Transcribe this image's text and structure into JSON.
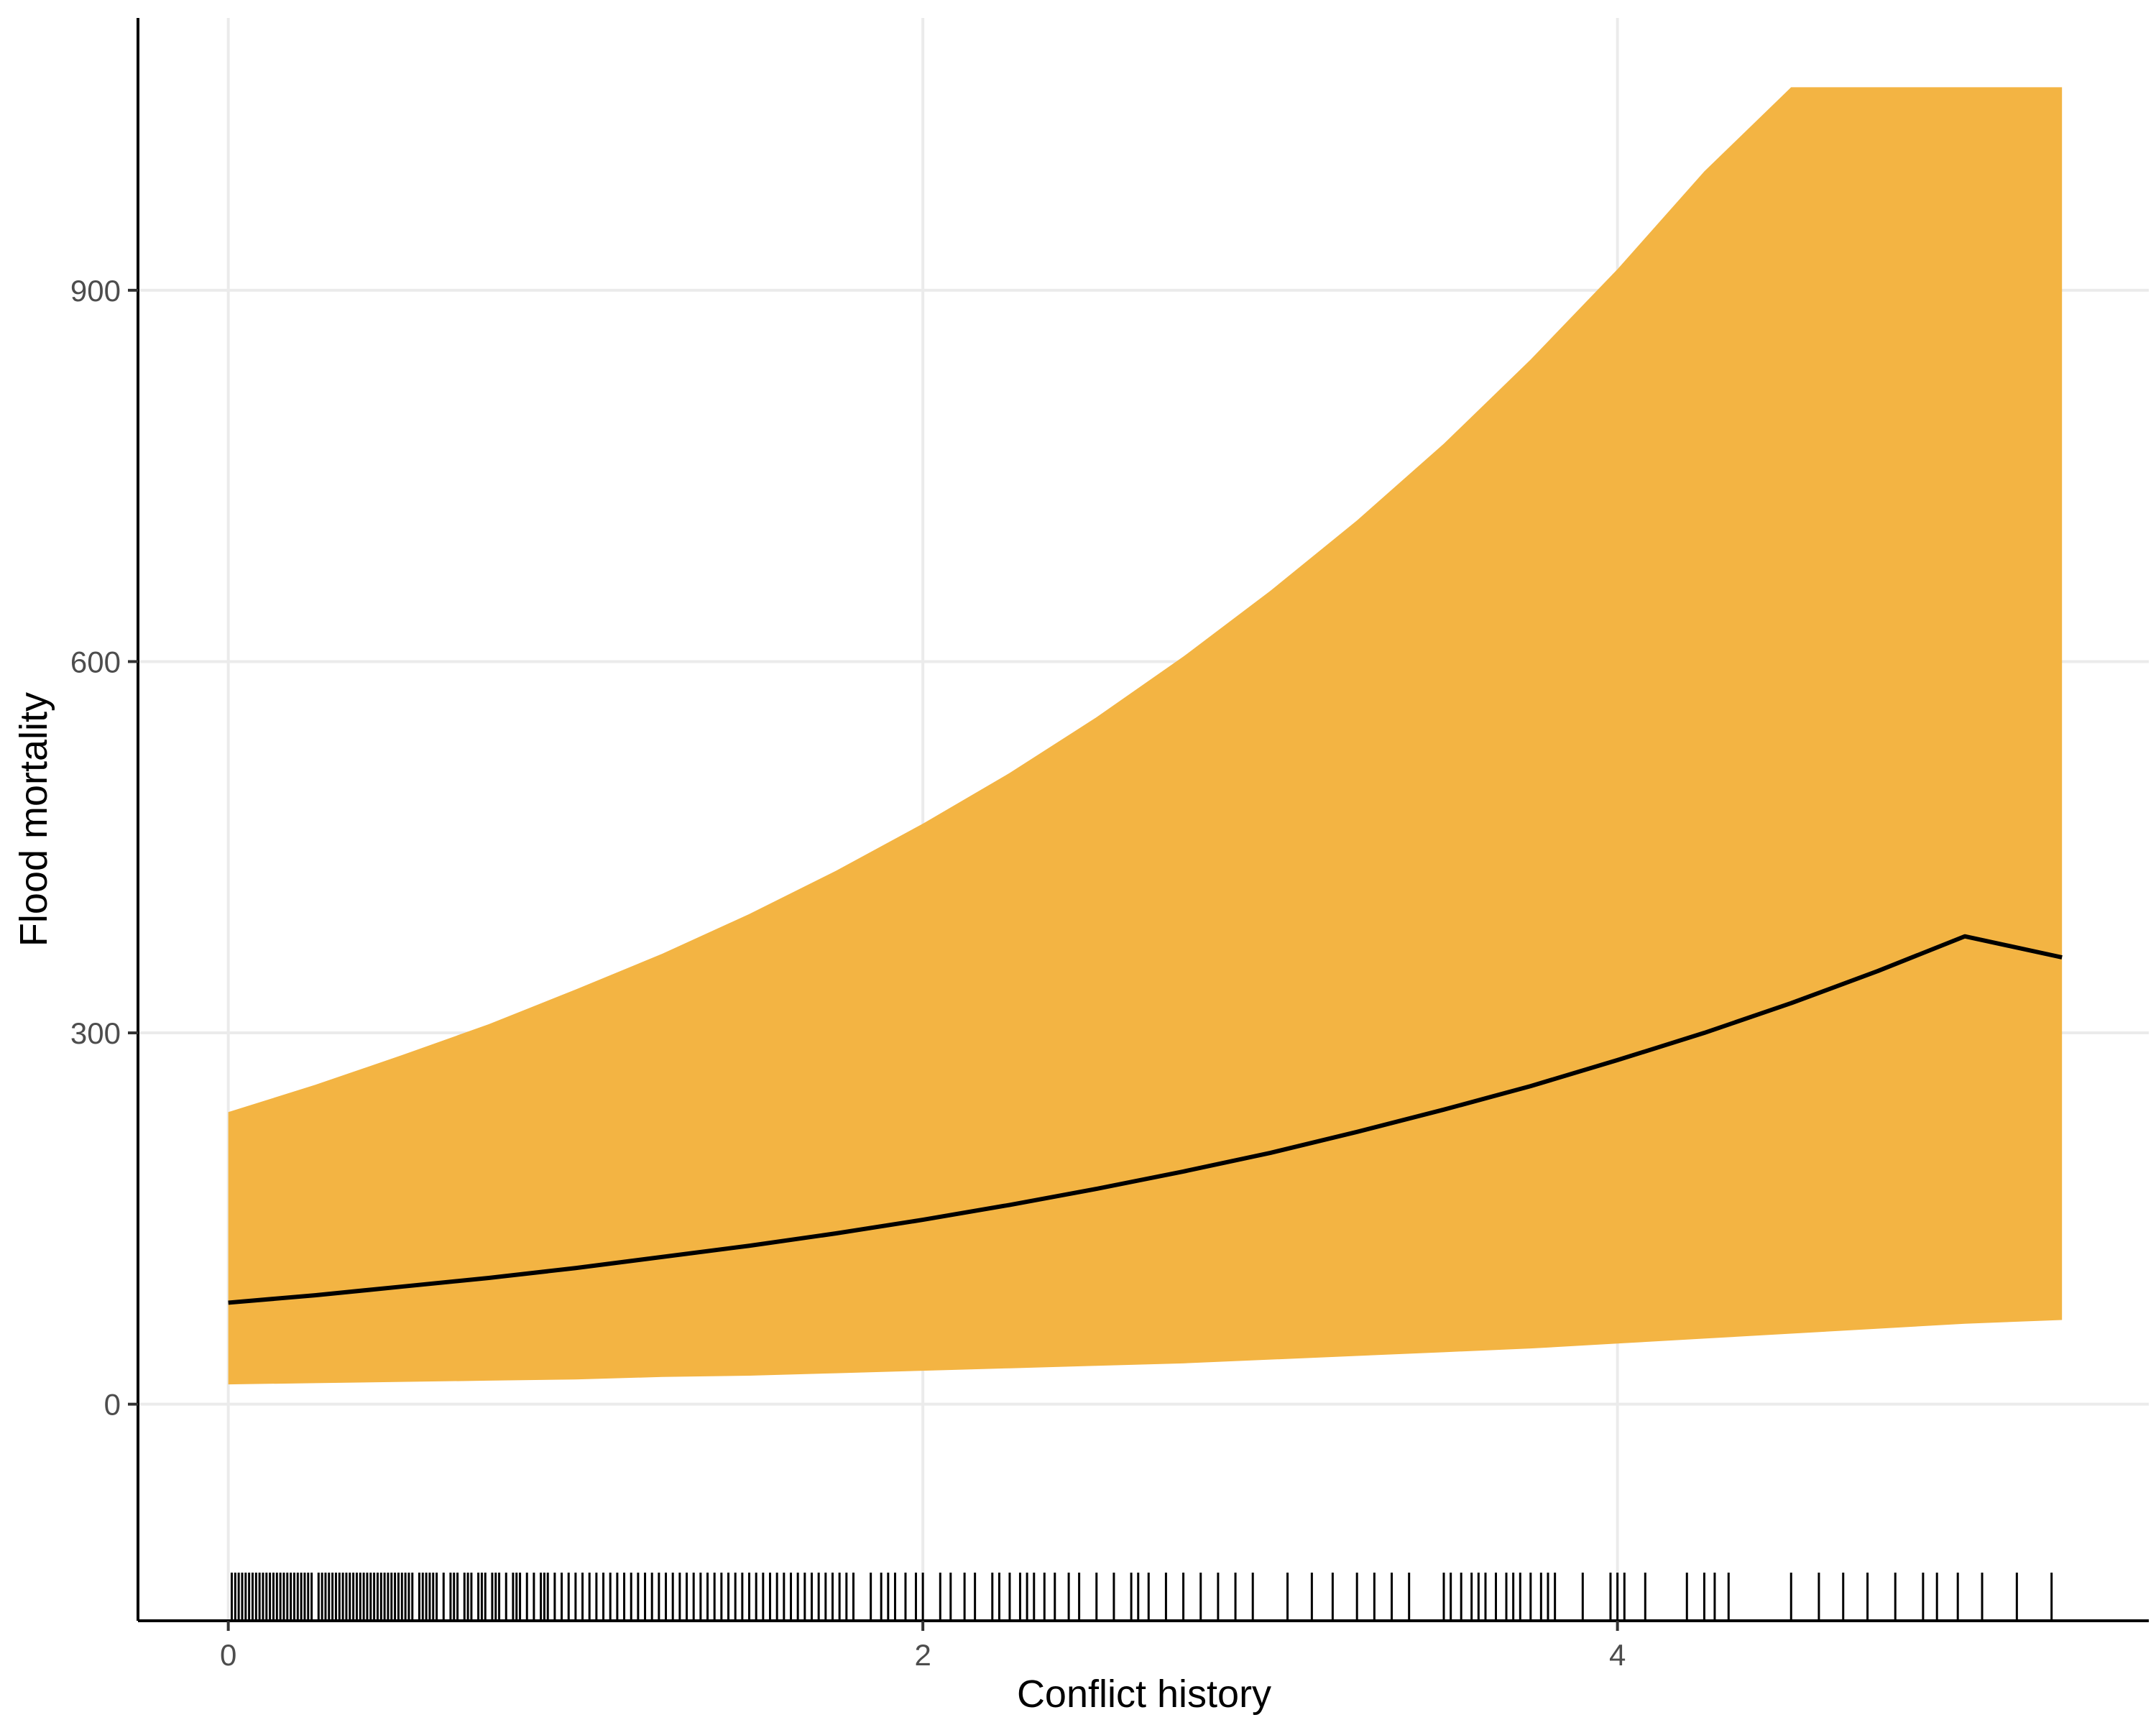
{
  "chart_data": {
    "type": "line",
    "title": "",
    "xlabel": "Conflict history",
    "ylabel": "Flood mortality",
    "xlim": [
      -0.26,
      5.53
    ],
    "ylim": [
      -175,
      1120
    ],
    "x_ticks": [
      0,
      2,
      4
    ],
    "x_tick_labels": [
      "0",
      "2",
      "4"
    ],
    "y_ticks": [
      0,
      300,
      600,
      900
    ],
    "y_tick_labels": [
      "0",
      "300",
      "600",
      "900"
    ],
    "grid": true,
    "legend": "none",
    "series": [
      {
        "x": [
          0,
          0.25,
          0.5,
          0.75,
          1.0,
          1.25,
          1.5,
          1.75,
          2.0,
          2.25,
          2.5,
          2.75,
          3.0,
          3.25,
          3.5,
          3.75,
          4.0,
          4.25,
          4.5,
          4.75,
          5.0,
          5.28
        ],
        "y": [
          82,
          88,
          95,
          102,
          110,
          119,
          128,
          138,
          149,
          161,
          174,
          188,
          203,
          220,
          238,
          257,
          278,
          300,
          324,
          350,
          378,
          361
        ]
      }
    ],
    "band": {
      "x": [
        0,
        0.25,
        0.5,
        0.75,
        1.0,
        1.25,
        1.5,
        1.75,
        2.0,
        2.25,
        2.5,
        2.75,
        3.0,
        3.25,
        3.5,
        3.75,
        4.0,
        4.25,
        4.5,
        4.75,
        5.0,
        5.28
      ],
      "lower": [
        16,
        17,
        18,
        19,
        20,
        22,
        23,
        25,
        27,
        29,
        31,
        33,
        36,
        39,
        42,
        45,
        49,
        53,
        57,
        61,
        65,
        68
      ],
      "upper": [
        236,
        258,
        282,
        307,
        335,
        364,
        396,
        431,
        469,
        510,
        555,
        604,
        657,
        714,
        776,
        844,
        917,
        996,
        1080,
        1170,
        1266,
        1064
      ]
    },
    "rug_x": [
      0.01,
      0.02,
      0.03,
      0.04,
      0.05,
      0.06,
      0.07,
      0.08,
      0.09,
      0.1,
      0.11,
      0.12,
      0.13,
      0.14,
      0.15,
      0.16,
      0.17,
      0.18,
      0.19,
      0.2,
      0.21,
      0.22,
      0.23,
      0.24,
      0.26,
      0.27,
      0.28,
      0.29,
      0.3,
      0.31,
      0.32,
      0.33,
      0.34,
      0.35,
      0.36,
      0.37,
      0.38,
      0.39,
      0.4,
      0.41,
      0.42,
      0.43,
      0.44,
      0.45,
      0.46,
      0.47,
      0.48,
      0.49,
      0.5,
      0.51,
      0.52,
      0.53,
      0.55,
      0.56,
      0.57,
      0.58,
      0.59,
      0.6,
      0.62,
      0.64,
      0.65,
      0.66,
      0.68,
      0.69,
      0.7,
      0.72,
      0.73,
      0.74,
      0.76,
      0.77,
      0.78,
      0.8,
      0.82,
      0.83,
      0.84,
      0.86,
      0.88,
      0.9,
      0.91,
      0.92,
      0.94,
      0.96,
      0.98,
      1.0,
      1.02,
      1.04,
      1.06,
      1.08,
      1.1,
      1.12,
      1.14,
      1.16,
      1.18,
      1.2,
      1.22,
      1.24,
      1.26,
      1.28,
      1.3,
      1.32,
      1.34,
      1.36,
      1.38,
      1.4,
      1.42,
      1.44,
      1.46,
      1.48,
      1.5,
      1.52,
      1.54,
      1.56,
      1.58,
      1.6,
      1.62,
      1.64,
      1.66,
      1.68,
      1.7,
      1.72,
      1.74,
      1.76,
      1.78,
      1.8,
      1.85,
      1.88,
      1.9,
      1.92,
      1.95,
      1.98,
      2.0,
      2.05,
      2.08,
      2.12,
      2.15,
      2.2,
      2.22,
      2.25,
      2.28,
      2.3,
      2.32,
      2.35,
      2.38,
      2.42,
      2.45,
      2.5,
      2.55,
      2.6,
      2.62,
      2.65,
      2.7,
      2.75,
      2.8,
      2.85,
      2.9,
      2.95,
      3.05,
      3.12,
      3.18,
      3.25,
      3.3,
      3.35,
      3.4,
      3.5,
      3.52,
      3.55,
      3.58,
      3.6,
      3.62,
      3.65,
      3.68,
      3.7,
      3.72,
      3.75,
      3.78,
      3.8,
      3.82,
      3.9,
      3.98,
      4.0,
      4.02,
      4.08,
      4.2,
      4.25,
      4.28,
      4.32,
      4.5,
      4.58,
      4.65,
      4.72,
      4.8,
      4.88,
      4.92,
      4.98,
      5.05,
      5.15,
      5.25
    ]
  }
}
